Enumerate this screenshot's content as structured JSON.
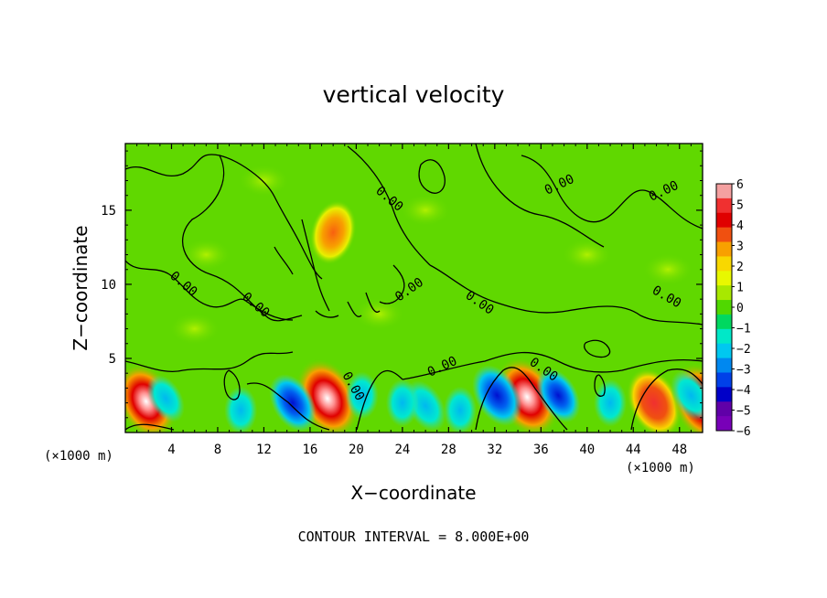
{
  "chart_data": {
    "type": "heatmap",
    "title": "vertical velocity",
    "xlabel": "X−coordinate",
    "ylabel": "Z−coordinate",
    "x_unit": "(×1000 m)",
    "y_unit": "(×1000 m)",
    "xlim": [
      0,
      50
    ],
    "ylim": [
      0,
      19.5
    ],
    "x_ticks": [
      4,
      8,
      12,
      16,
      20,
      24,
      28,
      32,
      36,
      40,
      44,
      48
    ],
    "y_ticks": [
      5,
      10,
      15
    ],
    "contour_label": "0.00",
    "contour_interval_text": "CONTOUR INTERVAL = 8.000E+00",
    "colorbar": {
      "ticks": [
        "6",
        "5",
        "4",
        "3",
        "2",
        "1",
        "0",
        "−1",
        "−2",
        "−3",
        "−4",
        "−5",
        "−6"
      ],
      "colors": [
        "#f4a0a0",
        "#f03030",
        "#e00000",
        "#f05010",
        "#f8a000",
        "#f8d800",
        "#e8f800",
        "#a8e800",
        "#50d800",
        "#00d860",
        "#00e8c8",
        "#00c8f0",
        "#0088f0",
        "#0040e8",
        "#0000c8",
        "#6000a8",
        "#7800b8"
      ]
    },
    "hotspots": [
      {
        "x": 1.8,
        "z": 2.1,
        "w": 5.5,
        "label": "updraft"
      },
      {
        "x": 17.5,
        "z": 2.3,
        "w": 6.0,
        "label": "updraft"
      },
      {
        "x": 34.8,
        "z": 2.4,
        "w": 6.0,
        "label": "updraft"
      },
      {
        "x": 45.8,
        "z": 2.0,
        "w": 4.5,
        "label": "updraft"
      },
      {
        "x": 50.0,
        "z": 2.0,
        "w": 6.0,
        "label": "updraft"
      },
      {
        "x": 18.0,
        "z": 13.5,
        "w": 3.5,
        "label": "updraft aloft"
      },
      {
        "x": 14.5,
        "z": 2.0,
        "w": -4.0,
        "label": "downdraft"
      },
      {
        "x": 26.0,
        "z": 1.8,
        "w": -3.0,
        "label": "downdraft"
      },
      {
        "x": 32.2,
        "z": 2.5,
        "w": -4.5,
        "label": "downdraft"
      },
      {
        "x": 37.5,
        "z": 2.5,
        "w": -3.5,
        "label": "downdraft"
      },
      {
        "x": 3.5,
        "z": 2.3,
        "w": -2.5,
        "label": "downdraft"
      },
      {
        "x": 49.0,
        "z": 2.5,
        "w": -3.0,
        "label": "downdraft"
      }
    ]
  }
}
